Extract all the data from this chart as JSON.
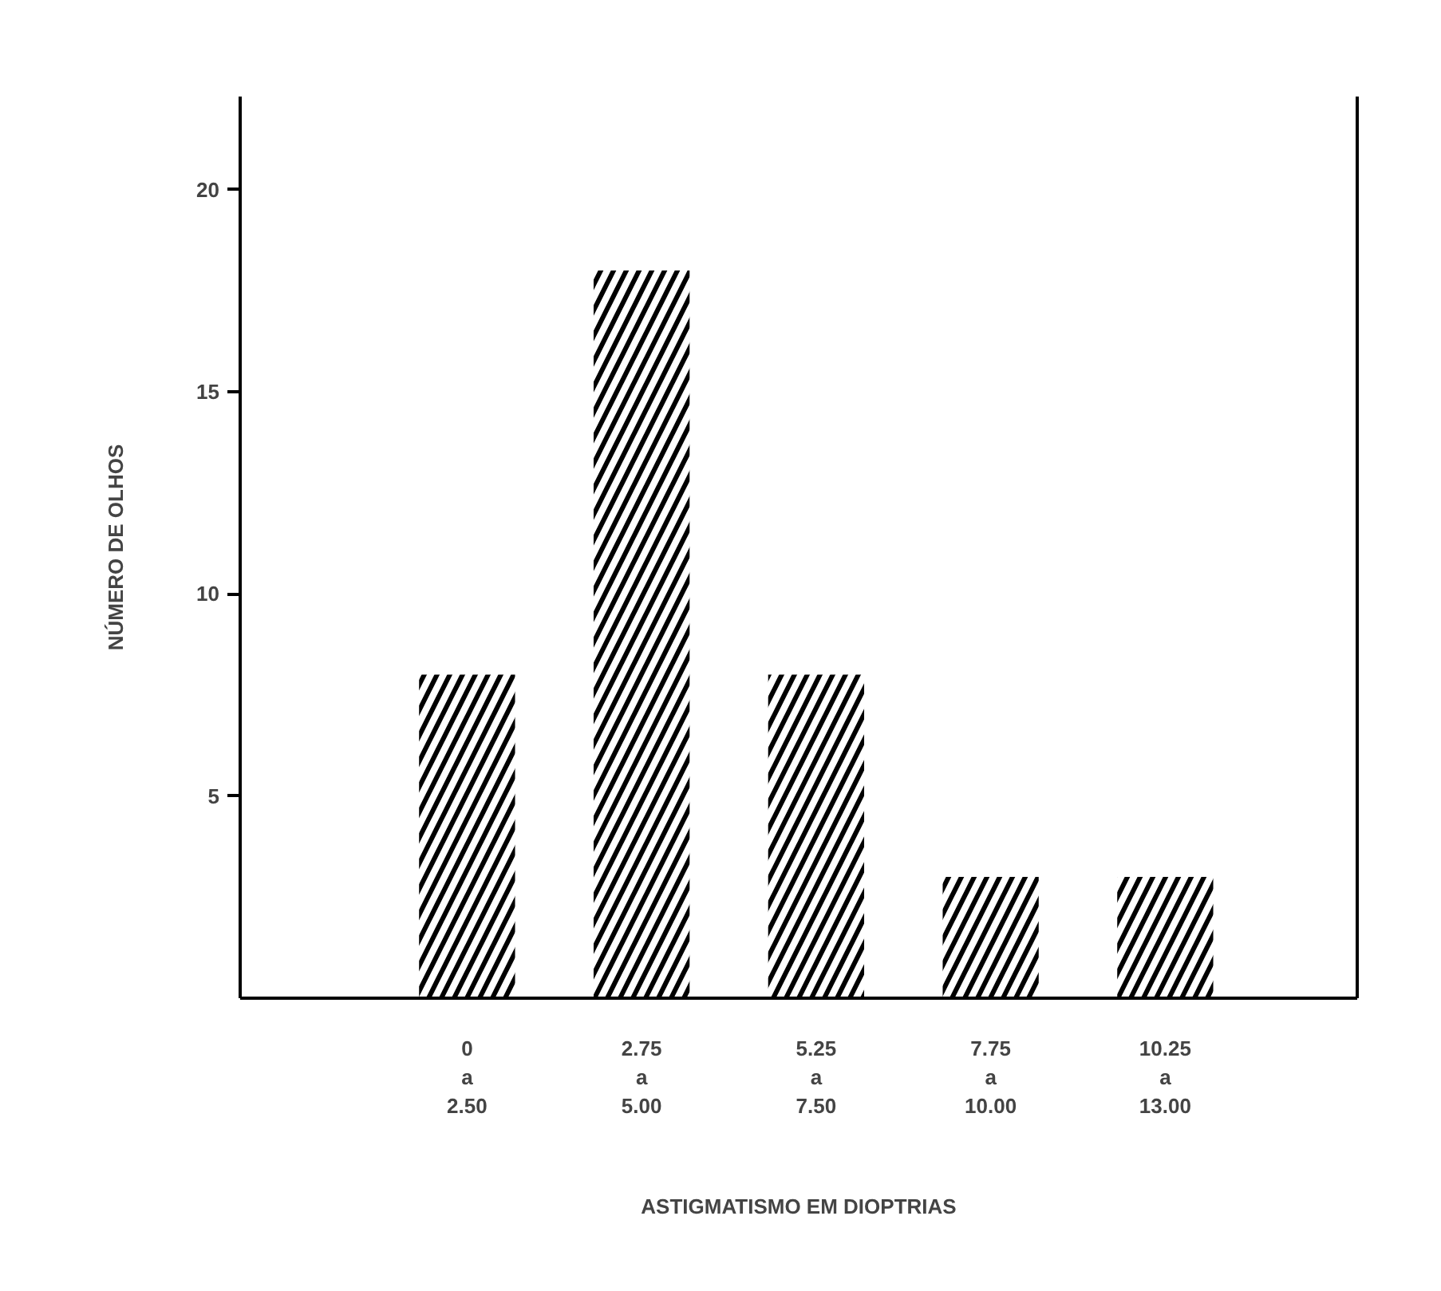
{
  "chart_data": {
    "type": "bar",
    "categories": [
      "0\na\n2.50",
      "2.75\na\n5.00",
      "5.25\na\n7.50",
      "7.75\na\n10.00",
      "10.25\na\n13.00"
    ],
    "values": [
      8,
      18,
      8,
      3,
      3
    ],
    "color": "#000000",
    "ylim": [
      0,
      22.3
    ],
    "yticks": [
      5,
      10,
      15,
      20
    ],
    "xlabel": "ASTIGMATISMO EM DIOPTRIAS",
    "ylabel": "NÚMERO DE OLHOS",
    "grid": false
  }
}
